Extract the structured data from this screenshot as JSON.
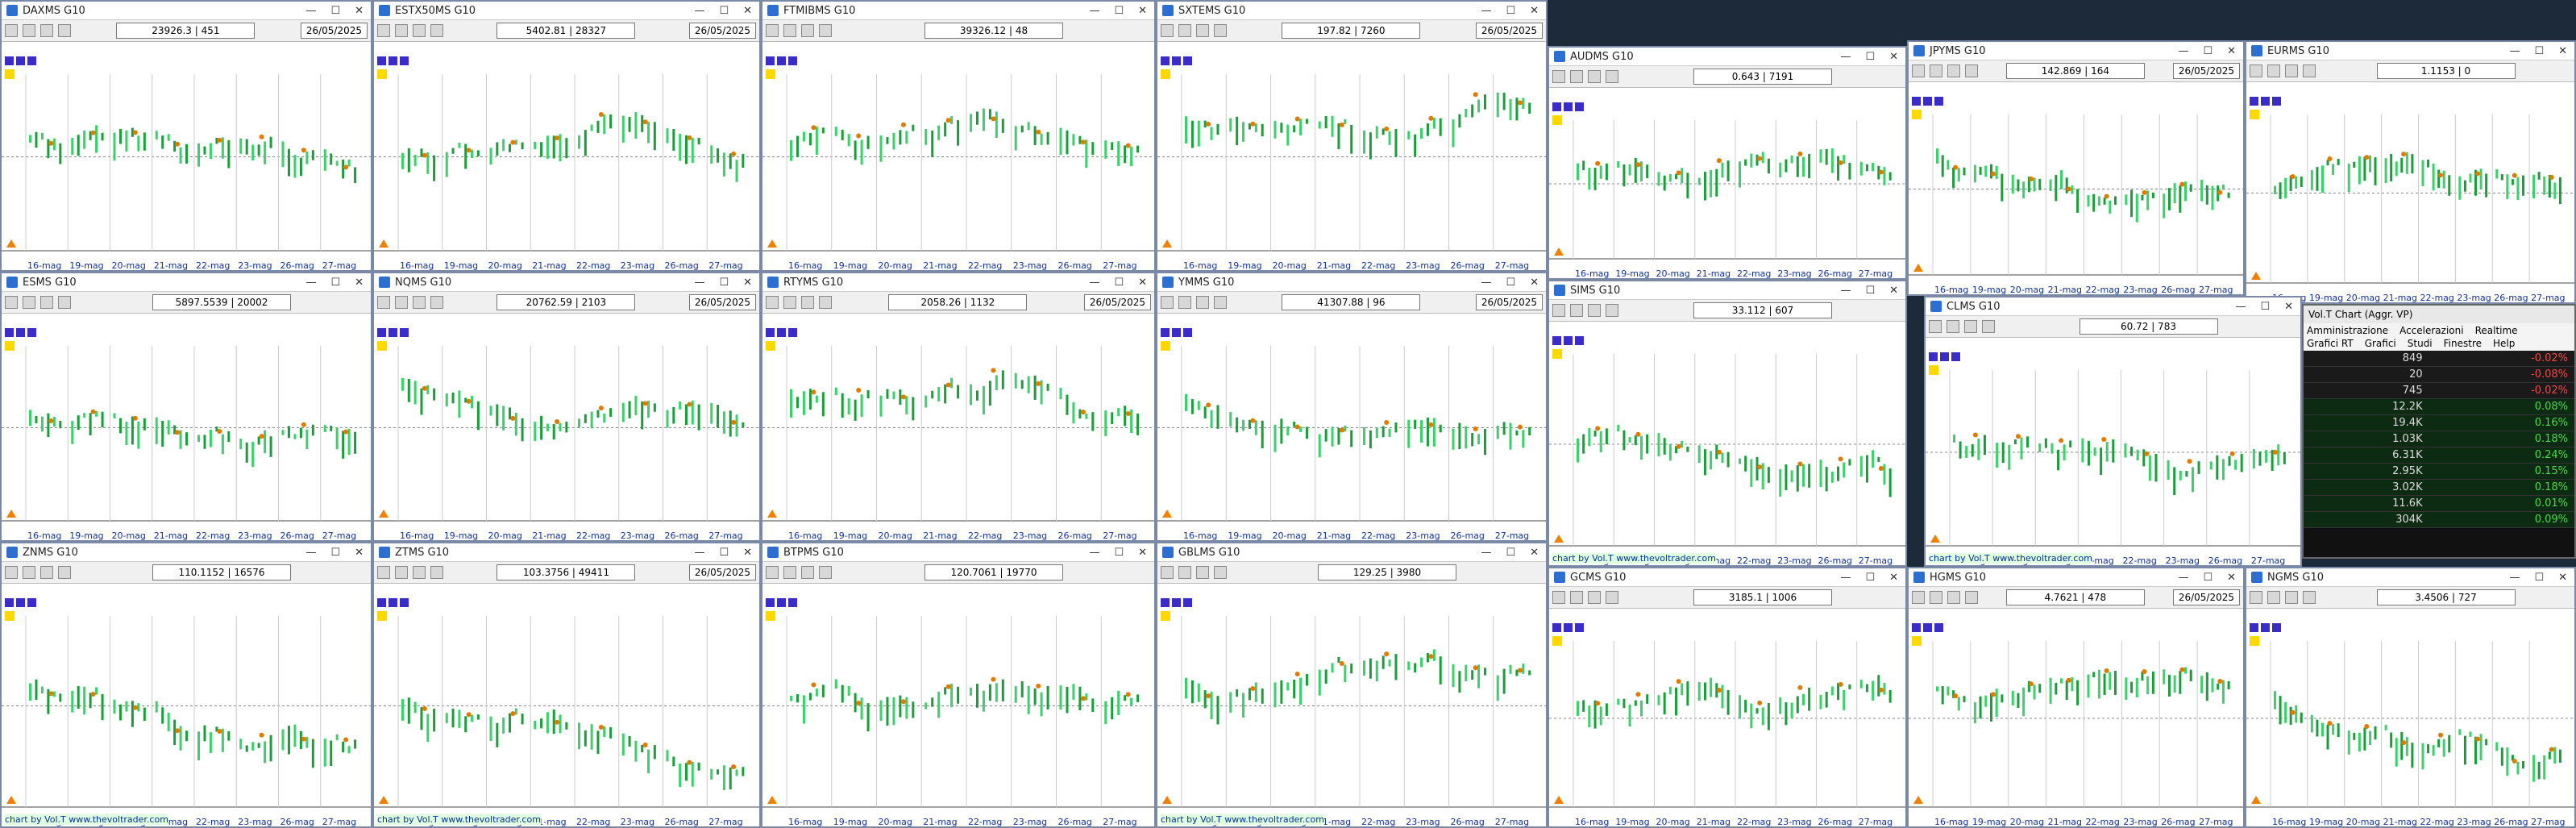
{
  "date_axis": [
    "16-mag",
    "19-mag",
    "20-mag",
    "21-mag",
    "22-mag",
    "23-mag",
    "26-mag",
    "27-mag"
  ],
  "session_date": "26/05/2025",
  "credit": "chart by Vol.T www.thevoltrader.com",
  "windows": [
    {
      "title": "DAXMS G10",
      "price": "23926.3 | 451"
    },
    {
      "title": "ESTX50MS G10",
      "price": "5402.81 | 28327"
    },
    {
      "title": "FTMIBMS G10",
      "price": "39326.12 | 48"
    },
    {
      "title": "SXTEMS G10",
      "price": "197.82 | 7260"
    },
    {
      "title": "ESMS G10",
      "price": "5897.5539 | 20002"
    },
    {
      "title": "NQMS G10",
      "price": "20762.59 | 2103"
    },
    {
      "title": "RTYMS G10",
      "price": "2058.26 | 1132"
    },
    {
      "title": "YMMS G10",
      "price": "41307.88 | 96"
    },
    {
      "title": "ZNMS G10",
      "price": "110.1152 | 16576"
    },
    {
      "title": "ZTMS G10",
      "price": "103.3756 | 49411"
    },
    {
      "title": "BTPMS G10",
      "price": "120.7061 | 19770"
    },
    {
      "title": "GBLMS G10",
      "price": "129.25 | 3980"
    },
    {
      "title": "AUDMS G10",
      "price": "0.643 | 7191"
    },
    {
      "title": "JPYMS G10",
      "price": "142.869 | 164"
    },
    {
      "title": "EURMS G10",
      "price": "1.1153 | 0"
    },
    {
      "title": "SIMS G10",
      "price": "33.112 | 607"
    },
    {
      "title": "CLMS G10",
      "price": "60.72 | 783"
    },
    {
      "title": "GCMS G10",
      "price": "3185.1 | 1006"
    },
    {
      "title": "HGMS G10",
      "price": "4.7621 | 478"
    },
    {
      "title": "NGMS G10",
      "price": "3.4506 | 727"
    }
  ],
  "volt_panel": {
    "title": "Vol.T Chart (Aggr. VP)",
    "menu": [
      "Amministrazione",
      "Accelerazioni",
      "Realtime",
      "Grafici RT",
      "Grafici",
      "Studi",
      "Finestre",
      "Help"
    ],
    "rows": [
      [
        "849",
        "-0.02%"
      ],
      [
        "20",
        "-0.08%"
      ],
      [
        "745",
        "-0.02%"
      ],
      [
        "12.2K",
        "0.08%"
      ],
      [
        "19.4K",
        "0.16%"
      ],
      [
        "1.03K",
        "0.18%"
      ],
      [
        "6.31K",
        "0.24%"
      ],
      [
        "2.95K",
        "0.15%"
      ],
      [
        "3.02K",
        "0.18%"
      ],
      [
        "11.6K",
        "0.01%"
      ],
      [
        "304K",
        "0.09%"
      ]
    ]
  }
}
